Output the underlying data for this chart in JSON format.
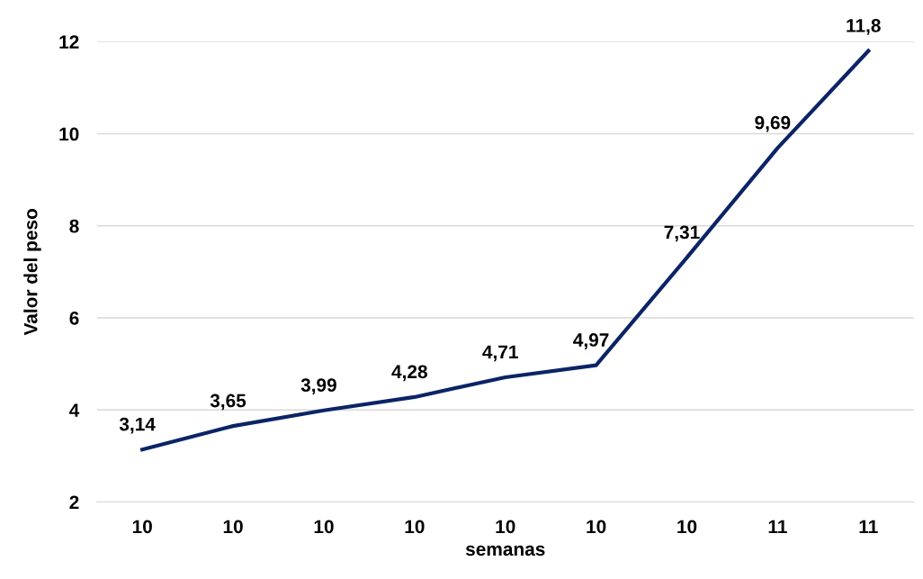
{
  "chart_data": {
    "type": "line",
    "xlabel": "semanas",
    "ylabel": "Valor del peso",
    "categories": [
      "10",
      "10",
      "10",
      "10",
      "10",
      "10",
      "10",
      "11",
      "11"
    ],
    "series": [
      {
        "color": "#0b2466",
        "values": [
          3.14,
          3.65,
          3.99,
          4.28,
          4.71,
          4.97,
          7.31,
          9.69,
          11.8
        ],
        "value_labels": [
          "3,14",
          "3,65",
          "3,99",
          "4,28",
          "4,71",
          "4,97",
          "7,31",
          "9,69",
          "11,8"
        ]
      }
    ],
    "ylim": [
      2,
      12
    ],
    "yticks": [
      2,
      4,
      6,
      8,
      10,
      12
    ],
    "grid": "y",
    "marker": "none",
    "line_style": "solid",
    "legend": false
  }
}
